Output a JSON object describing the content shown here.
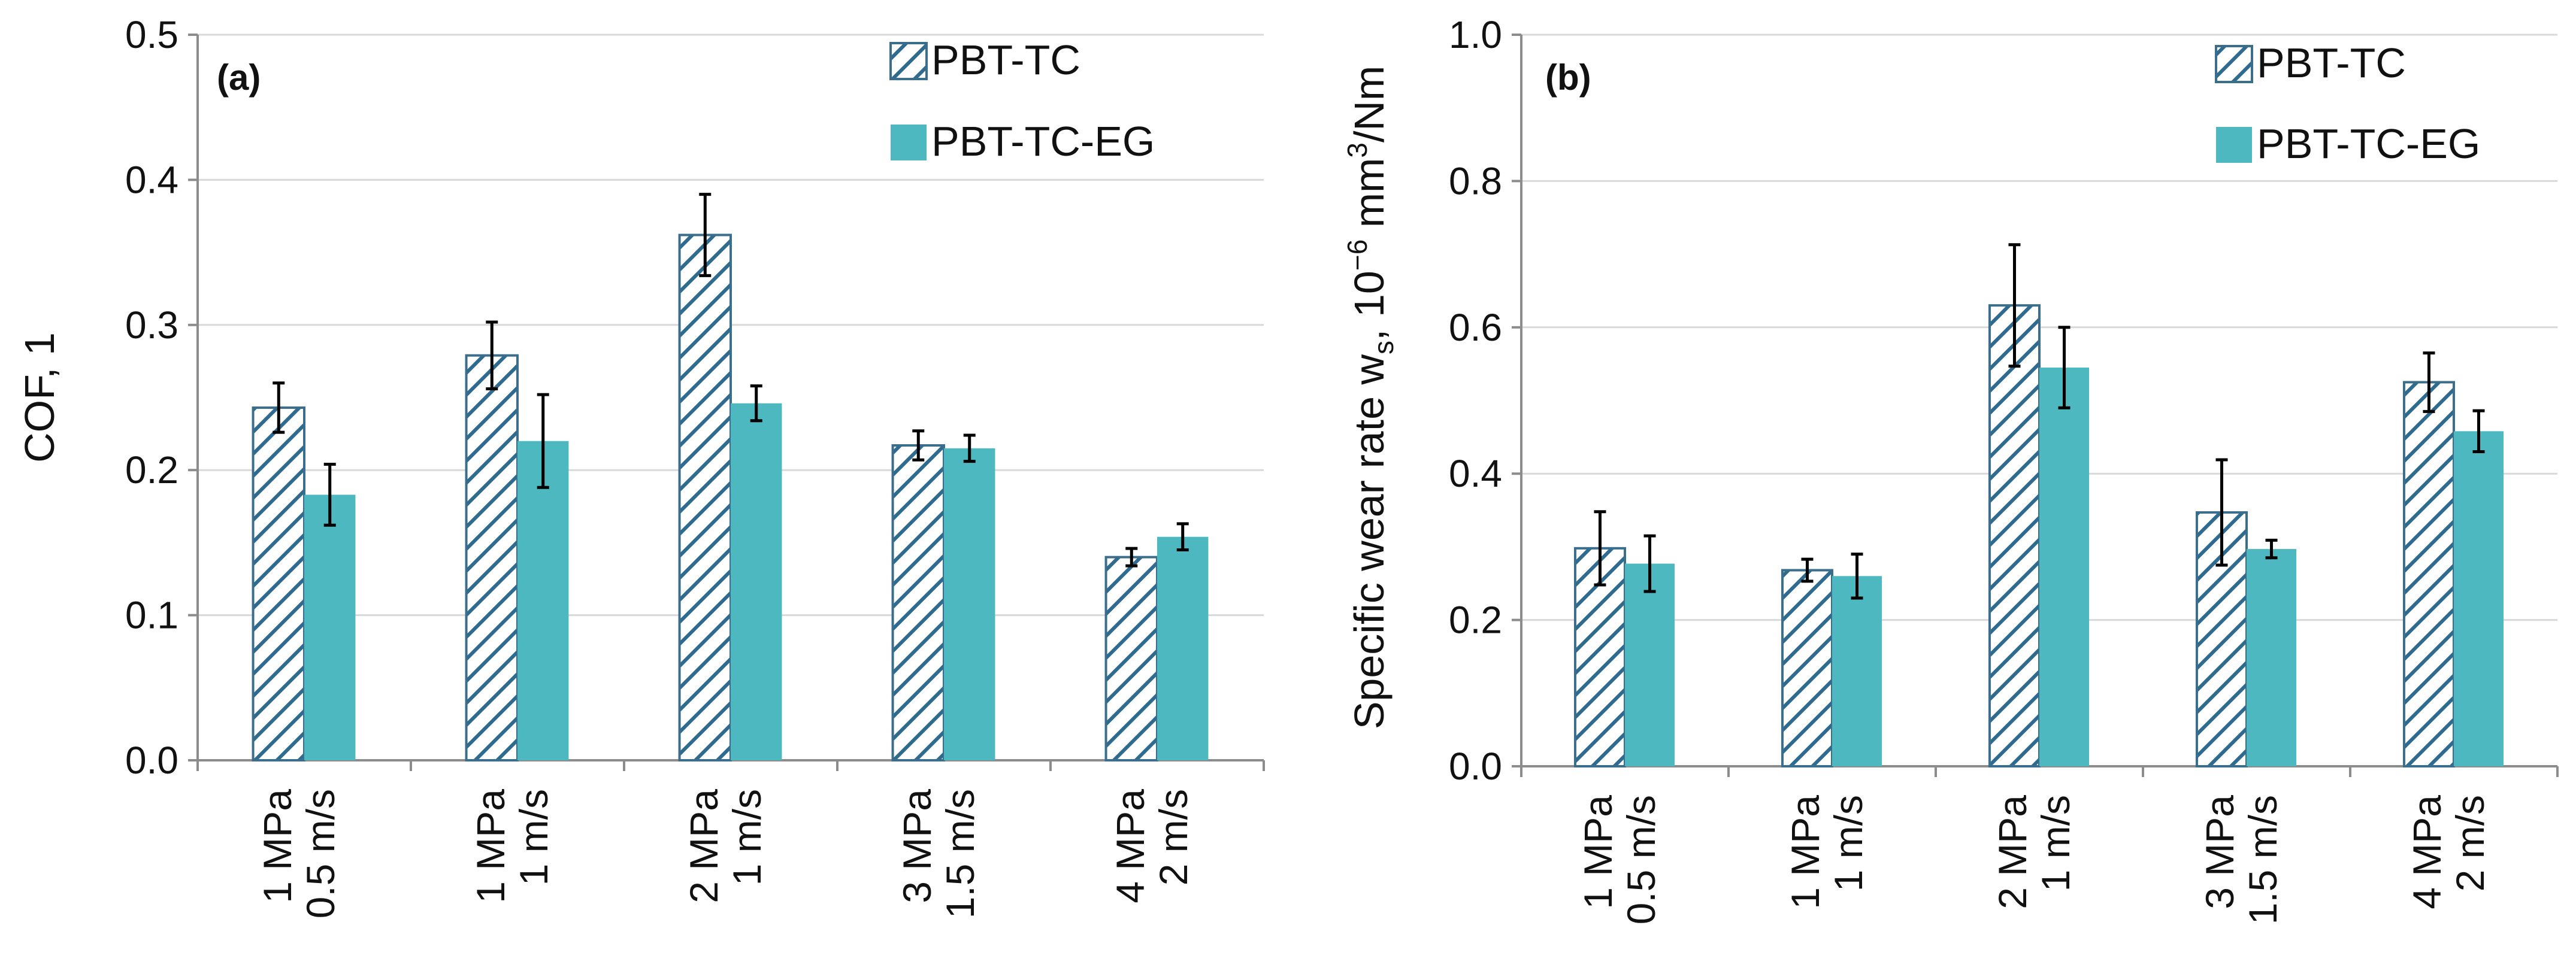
{
  "chart_data": [
    {
      "type": "bar",
      "panel_label": "(a)",
      "title": "",
      "xlabel": "",
      "ylabel": "COF, 1",
      "ylabel_parts": [
        "COF, 1"
      ],
      "ylim": [
        0,
        0.5
      ],
      "yticks": [
        "0.0",
        "0.1",
        "0.2",
        "0.3",
        "0.4",
        "0.5"
      ],
      "grid": true,
      "legend_position": "top-right",
      "categories": [
        [
          "1 MPa",
          "0.5 m/s"
        ],
        [
          "1 MPa",
          "1 m/s"
        ],
        [
          "2 MPa",
          "1 m/s"
        ],
        [
          "3 MPa",
          "1.5 m/s"
        ],
        [
          "4 MPa",
          "2 m/s"
        ]
      ],
      "series": [
        {
          "name": "PBT-TC",
          "style": "hatched",
          "values": [
            0.243,
            0.279,
            0.362,
            0.217,
            0.14
          ],
          "errors": [
            0.017,
            0.023,
            0.028,
            0.01,
            0.006
          ]
        },
        {
          "name": "PBT-TC-EG",
          "style": "solid",
          "values": [
            0.183,
            0.22,
            0.246,
            0.215,
            0.154
          ],
          "errors": [
            0.021,
            0.032,
            0.012,
            0.009,
            0.009
          ]
        }
      ]
    },
    {
      "type": "bar",
      "panel_label": "(b)",
      "title": "",
      "xlabel": "",
      "ylabel": "Specific wear rate ws, 10−6 mm3/Nm",
      "ylabel_parts": [
        "Specific wear rate w",
        "s",
        ", 10",
        "−6",
        " mm",
        "3",
        "/Nm"
      ],
      "ylim": [
        0,
        1.0
      ],
      "yticks": [
        "0.0",
        "0.2",
        "0.4",
        "0.6",
        "0.8",
        "1.0"
      ],
      "grid": true,
      "legend_position": "top-right",
      "categories": [
        [
          "1 MPa",
          "0.5 m/s"
        ],
        [
          "1 MPa",
          "1 m/s"
        ],
        [
          "2 MPa",
          "1 m/s"
        ],
        [
          "3 MPa",
          "1.5 m/s"
        ],
        [
          "4 MPa",
          "2 m/s"
        ]
      ],
      "series": [
        {
          "name": "PBT-TC",
          "style": "hatched",
          "values": [
            0.298,
            0.268,
            0.63,
            0.347,
            0.525
          ],
          "errors": [
            0.05,
            0.015,
            0.083,
            0.072,
            0.04
          ]
        },
        {
          "name": "PBT-TC-EG",
          "style": "solid",
          "values": [
            0.277,
            0.26,
            0.545,
            0.297,
            0.458
          ],
          "errors": [
            0.038,
            0.03,
            0.055,
            0.012,
            0.028
          ]
        }
      ]
    }
  ],
  "colors": {
    "hatch_line": "#2e6b8f",
    "hatch_border": "#3b6e8c",
    "solid_fill": "#4db8bf",
    "axis": "#8c8c8c",
    "grid": "#d9d9d9",
    "error_bar": "#000000"
  }
}
